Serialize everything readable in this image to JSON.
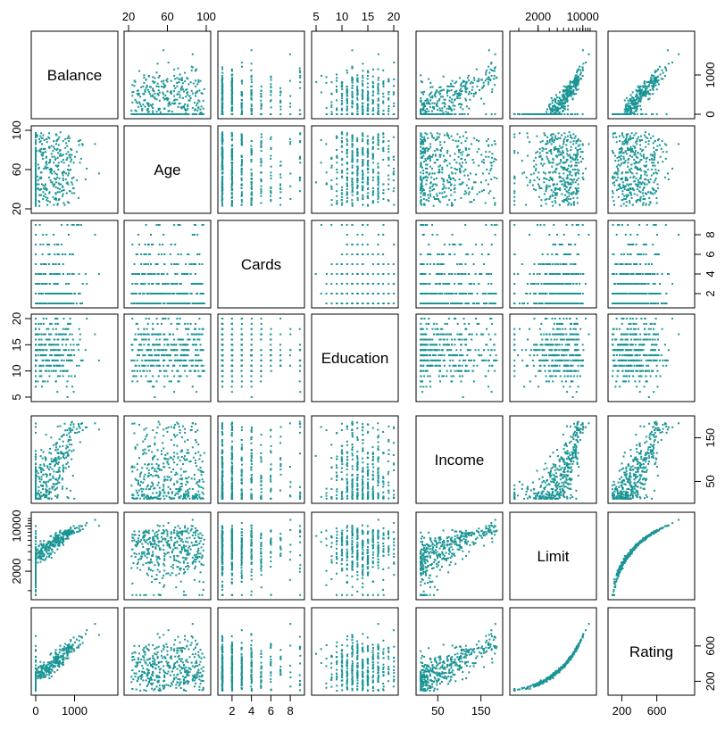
{
  "chart_data": {
    "type": "scatter",
    "title": "",
    "point_color": "#1a9494",
    "variables": [
      {
        "name": "Balance",
        "range": [
          0,
          2000
        ],
        "scale": "linear",
        "ticks": [
          0,
          1000
        ]
      },
      {
        "name": "Age",
        "range": [
          20,
          100
        ],
        "scale": "linear",
        "ticks": [
          20,
          60,
          100
        ]
      },
      {
        "name": "Cards",
        "range": [
          1,
          9
        ],
        "scale": "linear",
        "ticks": [
          2,
          4,
          6,
          8
        ]
      },
      {
        "name": "Education",
        "range": [
          5,
          20
        ],
        "scale": "linear",
        "ticks": [
          5,
          10,
          15,
          20
        ]
      },
      {
        "name": "Income",
        "range": [
          10,
          190
        ],
        "scale": "linear",
        "ticks": [
          50,
          150
        ]
      },
      {
        "name": "Limit",
        "range": [
          850,
          13900
        ],
        "scale": "log",
        "ticks": [
          2000,
          10000
        ]
      },
      {
        "name": "Rating",
        "range": [
          93,
          982
        ],
        "scale": "linear",
        "ticks": [
          200,
          600
        ]
      }
    ],
    "axes": {
      "top": [
        {
          "var": 1,
          "labels": [
            "20",
            "60",
            "100"
          ]
        },
        {
          "var": 3,
          "labels": [
            "5",
            "10",
            "15",
            "20"
          ]
        },
        {
          "var": 5,
          "labels": [
            "2000",
            "10000"
          ]
        }
      ],
      "bottom": [
        {
          "var": 0,
          "labels": [
            "0",
            "1000"
          ]
        },
        {
          "var": 2,
          "labels": [
            "2",
            "4",
            "6",
            "8"
          ]
        },
        {
          "var": 4,
          "labels": [
            "50",
            "150"
          ]
        },
        {
          "var": 6,
          "labels": [
            "200",
            "600"
          ]
        }
      ],
      "left": [
        {
          "var": 1,
          "labels": [
            "20",
            "60",
            "100"
          ]
        },
        {
          "var": 3,
          "labels": [
            "5",
            "10",
            "15",
            "20"
          ]
        },
        {
          "var": 5,
          "labels": [
            "2000",
            "10000"
          ]
        }
      ],
      "right": [
        {
          "var": 0,
          "labels": [
            "0",
            "1000"
          ]
        },
        {
          "var": 2,
          "labels": [
            "2",
            "4",
            "6",
            "8"
          ]
        },
        {
          "var": 4,
          "labels": [
            "50",
            "150"
          ]
        },
        {
          "var": 6,
          "labels": [
            "200",
            "600"
          ]
        }
      ]
    },
    "n_observations": 400,
    "grid": false,
    "legend": "none"
  }
}
